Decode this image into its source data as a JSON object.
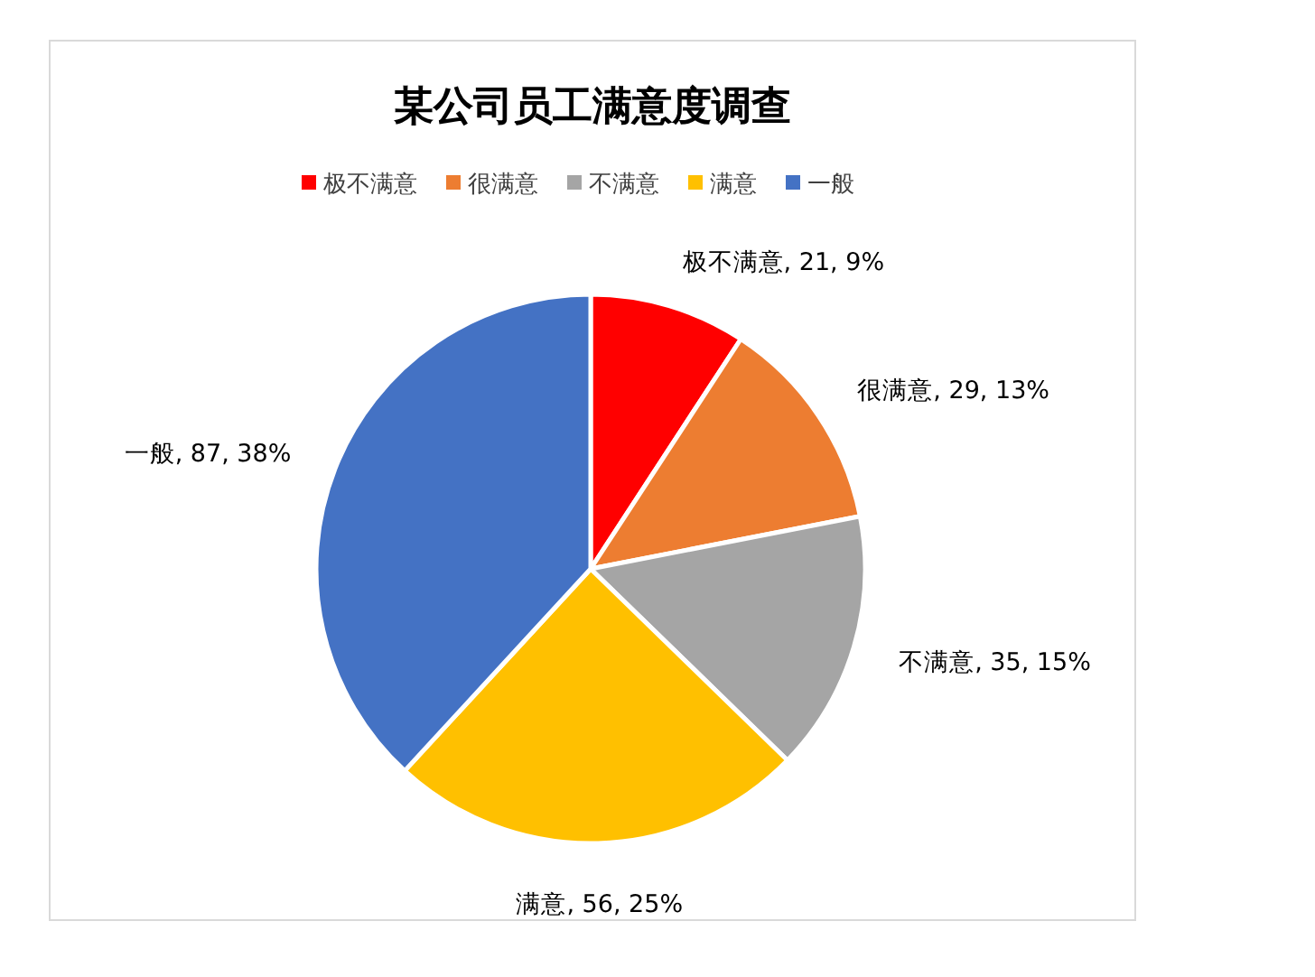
{
  "chart_data": {
    "type": "pie",
    "title": "某公司员工满意度调查",
    "categories": [
      "极不满意",
      "很满意",
      "不满意",
      "满意",
      "一般"
    ],
    "values": [
      21,
      29,
      35,
      56,
      87
    ],
    "colors": [
      "#ff0000",
      "#ed7d31",
      "#a5a5a5",
      "#ffc000",
      "#4472c4"
    ],
    "value_labels": [
      "极不满意, 21, 9%",
      "很满意, 29, 13%",
      "不满意, 35, 15%",
      "满意, 56, 25%",
      "一般, 87, 38%"
    ],
    "legend": "top"
  }
}
